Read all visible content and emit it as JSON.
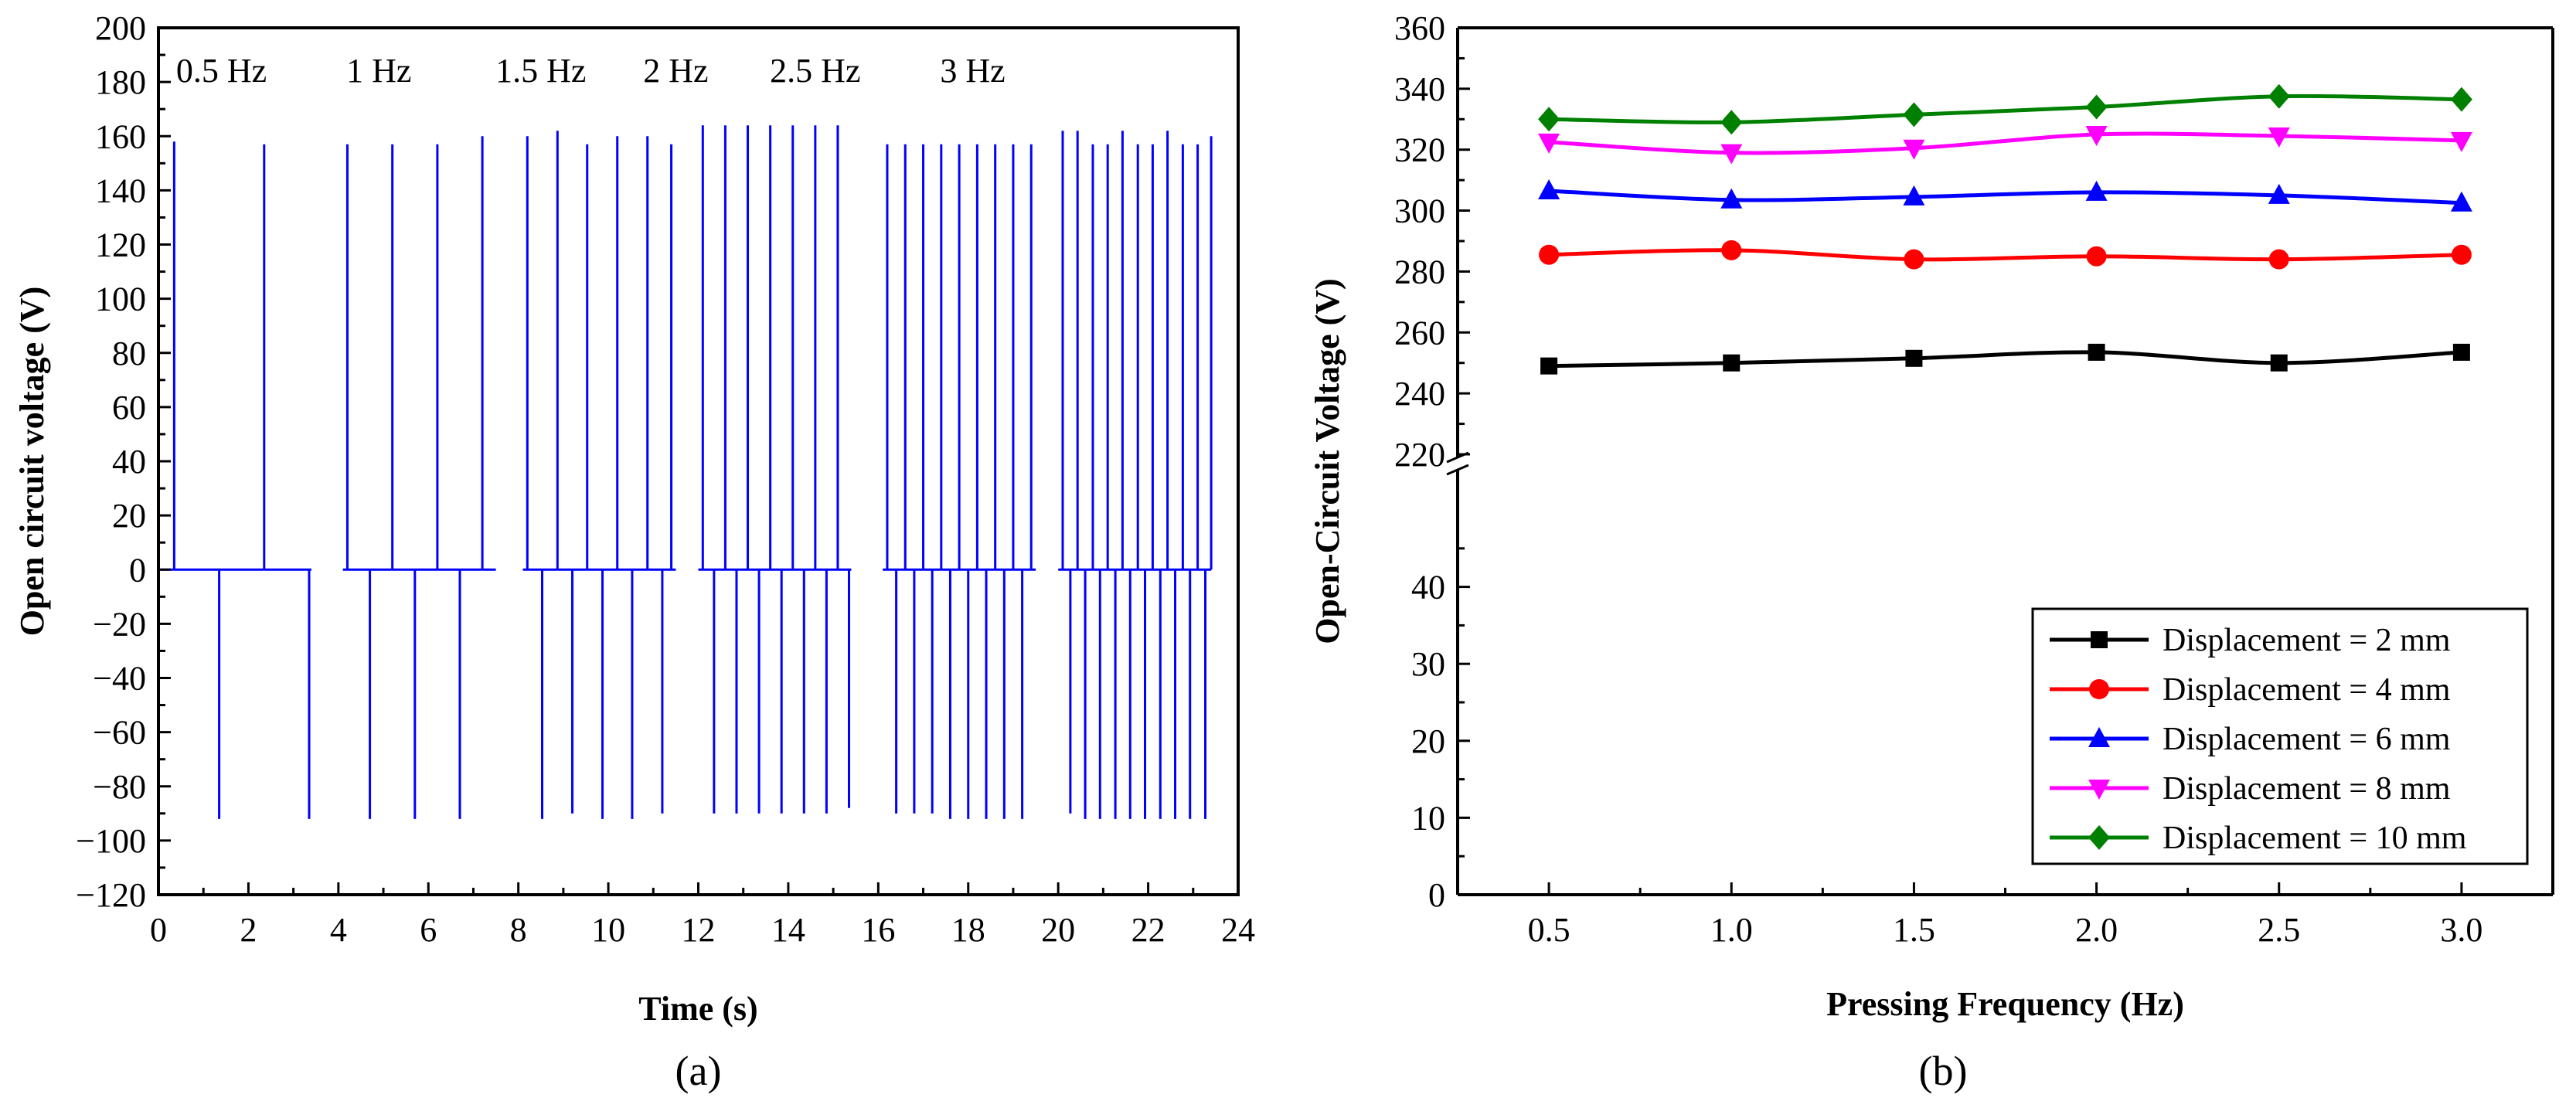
{
  "chart_data": [
    {
      "panel": "(a)",
      "type": "line",
      "title": "",
      "xlabel": "Time (s)",
      "ylabel": "Open circuit voltage (V)",
      "xlim": [
        0,
        24
      ],
      "ylim": [
        -120,
        200
      ],
      "xticks": [
        "0",
        "2",
        "4",
        "6",
        "8",
        "10",
        "12",
        "14",
        "16",
        "18",
        "20",
        "22",
        "24"
      ],
      "yticks": [
        "−120",
        "−100",
        "−80",
        "−60",
        "−40",
        "−20",
        "0",
        "20",
        "40",
        "60",
        "80",
        "100",
        "120",
        "140",
        "160",
        "180",
        "200"
      ],
      "color": "#0000ff",
      "segments": [
        {
          "label": "0.5 Hz",
          "label_x": 1.4,
          "start": 0.05,
          "end": 3.4,
          "pos": [
            0.35,
            2.35
          ],
          "pos_val": [
            158,
            157
          ],
          "neg": [
            1.35,
            3.35
          ],
          "neg_val": [
            -92,
            -92
          ]
        },
        {
          "label": "1 Hz",
          "label_x": 4.9,
          "start": 4.1,
          "end": 7.5,
          "pos": [
            4.2,
            5.2,
            6.2,
            7.2
          ],
          "pos_val": [
            157,
            157,
            157,
            160
          ],
          "neg": [
            4.7,
            5.7,
            6.7
          ],
          "neg_val": [
            -92,
            -92,
            -92
          ]
        },
        {
          "label": "1.5 Hz",
          "label_x": 8.5,
          "start": 8.1,
          "end": 11.5,
          "pos": [
            8.2,
            8.87,
            9.53,
            10.2,
            10.87,
            11.4
          ],
          "pos_val": [
            160,
            162,
            157,
            160,
            160,
            157
          ],
          "neg": [
            8.53,
            9.2,
            9.87,
            10.53,
            11.2
          ],
          "neg_val": [
            -92,
            -90,
            -92,
            -92,
            -90
          ]
        },
        {
          "label": "2 Hz",
          "label_x": 11.5,
          "start": 12.0,
          "end": 15.4,
          "pos": [
            12.1,
            12.6,
            13.1,
            13.6,
            14.1,
            14.6,
            15.1
          ],
          "pos_val": [
            164,
            164,
            164,
            164,
            164,
            164,
            164
          ],
          "neg": [
            12.35,
            12.85,
            13.35,
            13.85,
            14.35,
            14.85,
            15.35
          ],
          "neg_val": [
            -90,
            -90,
            -90,
            -90,
            -90,
            -90,
            -88
          ]
        },
        {
          "label": "2.5 Hz",
          "label_x": 14.6,
          "start": 16.1,
          "end": 19.5,
          "pos": [
            16.2,
            16.6,
            17.0,
            17.4,
            17.8,
            18.2,
            18.6,
            19.0,
            19.4
          ],
          "pos_val": [
            157,
            157,
            157,
            157,
            157,
            157,
            157,
            157,
            157
          ],
          "neg": [
            16.4,
            16.8,
            17.2,
            17.6,
            18.0,
            18.4,
            18.8,
            19.2
          ],
          "neg_val": [
            -90,
            -90,
            -90,
            -92,
            -92,
            -92,
            -92,
            -92
          ]
        },
        {
          "label": "3 Hz",
          "label_x": 18.1,
          "start": 20.0,
          "end": 23.4,
          "pos": [
            20.1,
            20.43,
            20.77,
            21.1,
            21.43,
            21.77,
            22.1,
            22.43,
            22.77,
            23.1,
            23.4
          ],
          "pos_val": [
            162,
            162,
            157,
            157,
            162,
            157,
            157,
            162,
            157,
            157,
            160
          ],
          "neg": [
            20.27,
            20.6,
            20.93,
            21.27,
            21.6,
            21.93,
            22.27,
            22.6,
            22.93,
            23.27
          ],
          "neg_val": [
            -90,
            -92,
            -92,
            -92,
            -92,
            -92,
            -92,
            -92,
            -92,
            -92
          ]
        }
      ]
    },
    {
      "panel": "(b)",
      "type": "line",
      "title": "",
      "xlabel": "Pressing Frequency (Hz)",
      "ylabel": "Open-Circuit Voltage (V)",
      "xlim": [
        0.25,
        3.25
      ],
      "ylim": [
        0,
        360
      ],
      "y_axis_break": {
        "lower": [
          0,
          50
        ],
        "upper": [
          220,
          360
        ]
      },
      "xticks": [
        "0.5",
        "1.0",
        "1.5",
        "2.0",
        "2.5",
        "3.0"
      ],
      "yticks_lower": [
        "0",
        "10",
        "20",
        "30",
        "40"
      ],
      "yticks_upper": [
        "220",
        "240",
        "260",
        "280",
        "300",
        "320",
        "340",
        "360"
      ],
      "legend_position": "bottom-right",
      "x": [
        0.5,
        1.0,
        1.5,
        2.0,
        2.5,
        3.0
      ],
      "series": [
        {
          "name": "Displacement = 2 mm",
          "color": "#000000",
          "marker": "square",
          "values": [
            249,
            250,
            251.5,
            253.5,
            250,
            253.5
          ]
        },
        {
          "name": "Displacement = 4 mm",
          "color": "#ff0000",
          "marker": "circle",
          "values": [
            285.5,
            287,
            284,
            285,
            284,
            285.5
          ]
        },
        {
          "name": "Displacement = 6 mm",
          "color": "#0000ff",
          "marker": "triangle-up",
          "values": [
            306.5,
            303.5,
            304.5,
            306,
            305,
            302.5
          ]
        },
        {
          "name": "Displacement = 8 mm",
          "color": "#ff00ff",
          "marker": "triangle-down",
          "values": [
            322.5,
            319,
            320.5,
            325,
            324.5,
            323
          ]
        },
        {
          "name": "Displacement = 10 mm",
          "color": "#008000",
          "marker": "diamond",
          "values": [
            330,
            329,
            331.5,
            334,
            337.5,
            336.5
          ]
        }
      ]
    }
  ]
}
